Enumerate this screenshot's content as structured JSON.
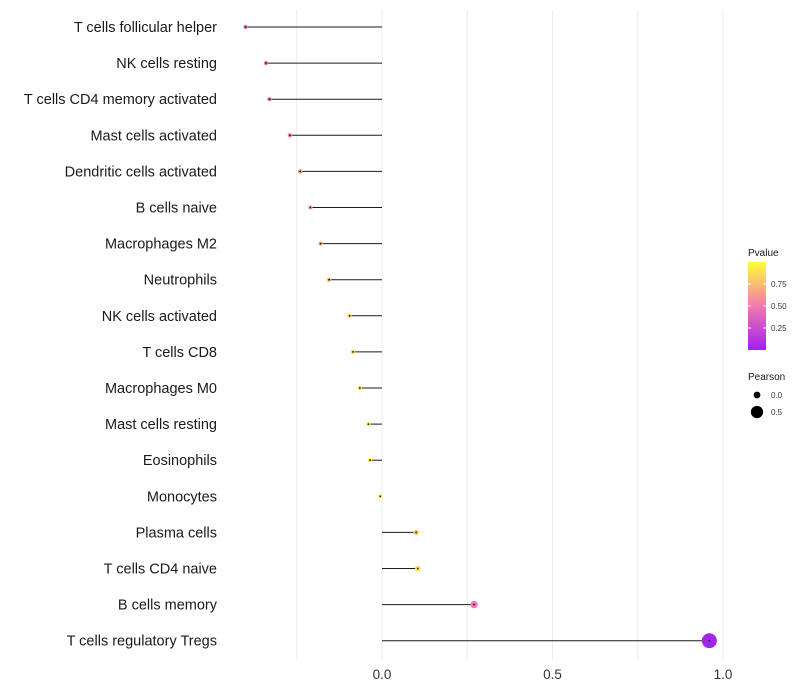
{
  "chart_data": {
    "type": "lollipop",
    "title": "",
    "xlabel": "",
    "ylabel": "",
    "xlim": [
      -0.5,
      1.02
    ],
    "x_ticks": [
      0.0,
      0.5,
      1.0
    ],
    "x_tick_labels": [
      "0.0",
      "0.5",
      "1.0"
    ],
    "grid": true,
    "points": [
      {
        "category": "T cells follicular helper",
        "pearson": -0.4,
        "pvalue": 0.45
      },
      {
        "category": "NK cells resting",
        "pearson": -0.34,
        "pvalue": 0.48
      },
      {
        "category": "T cells CD4 memory activated",
        "pearson": -0.33,
        "pvalue": 0.5
      },
      {
        "category": "Mast cells activated",
        "pearson": -0.27,
        "pvalue": 0.55
      },
      {
        "category": "Dendritic cells activated",
        "pearson": -0.24,
        "pvalue": 0.62
      },
      {
        "category": "B cells naive",
        "pearson": -0.21,
        "pvalue": 0.66
      },
      {
        "category": "Macrophages M2",
        "pearson": -0.18,
        "pvalue": 0.7
      },
      {
        "category": "Neutrophils",
        "pearson": -0.155,
        "pvalue": 0.73
      },
      {
        "category": "NK cells activated",
        "pearson": -0.095,
        "pvalue": 0.85
      },
      {
        "category": "T cells CD8",
        "pearson": -0.085,
        "pvalue": 0.87
      },
      {
        "category": "Macrophages M0",
        "pearson": -0.065,
        "pvalue": 0.89
      },
      {
        "category": "Mast cells resting",
        "pearson": -0.04,
        "pvalue": 0.93
      },
      {
        "category": "Eosinophils",
        "pearson": -0.035,
        "pvalue": 0.95
      },
      {
        "category": "Monocytes",
        "pearson": -0.005,
        "pvalue": 0.99
      },
      {
        "category": "Plasma cells",
        "pearson": 0.1,
        "pvalue": 0.82
      },
      {
        "category": "T cells CD4 naive",
        "pearson": 0.105,
        "pvalue": 0.88
      },
      {
        "category": "B cells memory",
        "pearson": 0.27,
        "pvalue": 0.48
      },
      {
        "category": "T cells regulatory  Tregs",
        "pearson": 0.96,
        "pvalue": 0.02
      }
    ],
    "legend": {
      "color": {
        "title": "Pvalue",
        "ticks": [
          0.75,
          0.5,
          0.25
        ],
        "tick_labels": [
          "0.75",
          "0.50",
          "0.25"
        ],
        "colors_low_to_high": [
          "#a020f0",
          "#ffff33"
        ],
        "range": [
          0.0,
          1.0
        ]
      },
      "size": {
        "title": "Pearson",
        "values": [
          0.0,
          0.5
        ],
        "labels": [
          "0.0",
          "0.5"
        ]
      },
      "placement": "right"
    }
  }
}
